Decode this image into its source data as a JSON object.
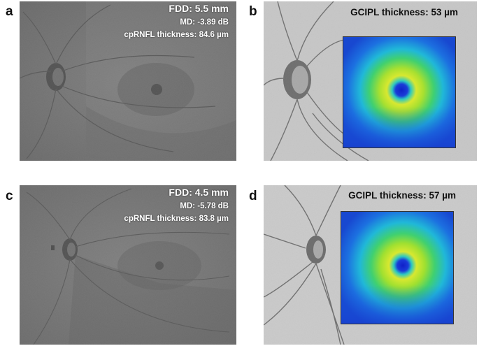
{
  "panels": [
    {
      "letter": "a",
      "fdd": "FDD: 5.5 mm",
      "md": "MD: -3.89 dB",
      "cprnfl": "cpRNFL thickness: 84.6 µm"
    },
    {
      "letter": "b",
      "gcipl": "GCIPL thickness: 53 µm"
    },
    {
      "letter": "c",
      "fdd": "FDD: 4.5 mm",
      "md": "MD: -5.78 dB",
      "cprnfl": "cpRNFL thickness: 83.8 µm"
    },
    {
      "letter": "d",
      "gcipl": "GCIPL thickness: 57 µm"
    }
  ]
}
